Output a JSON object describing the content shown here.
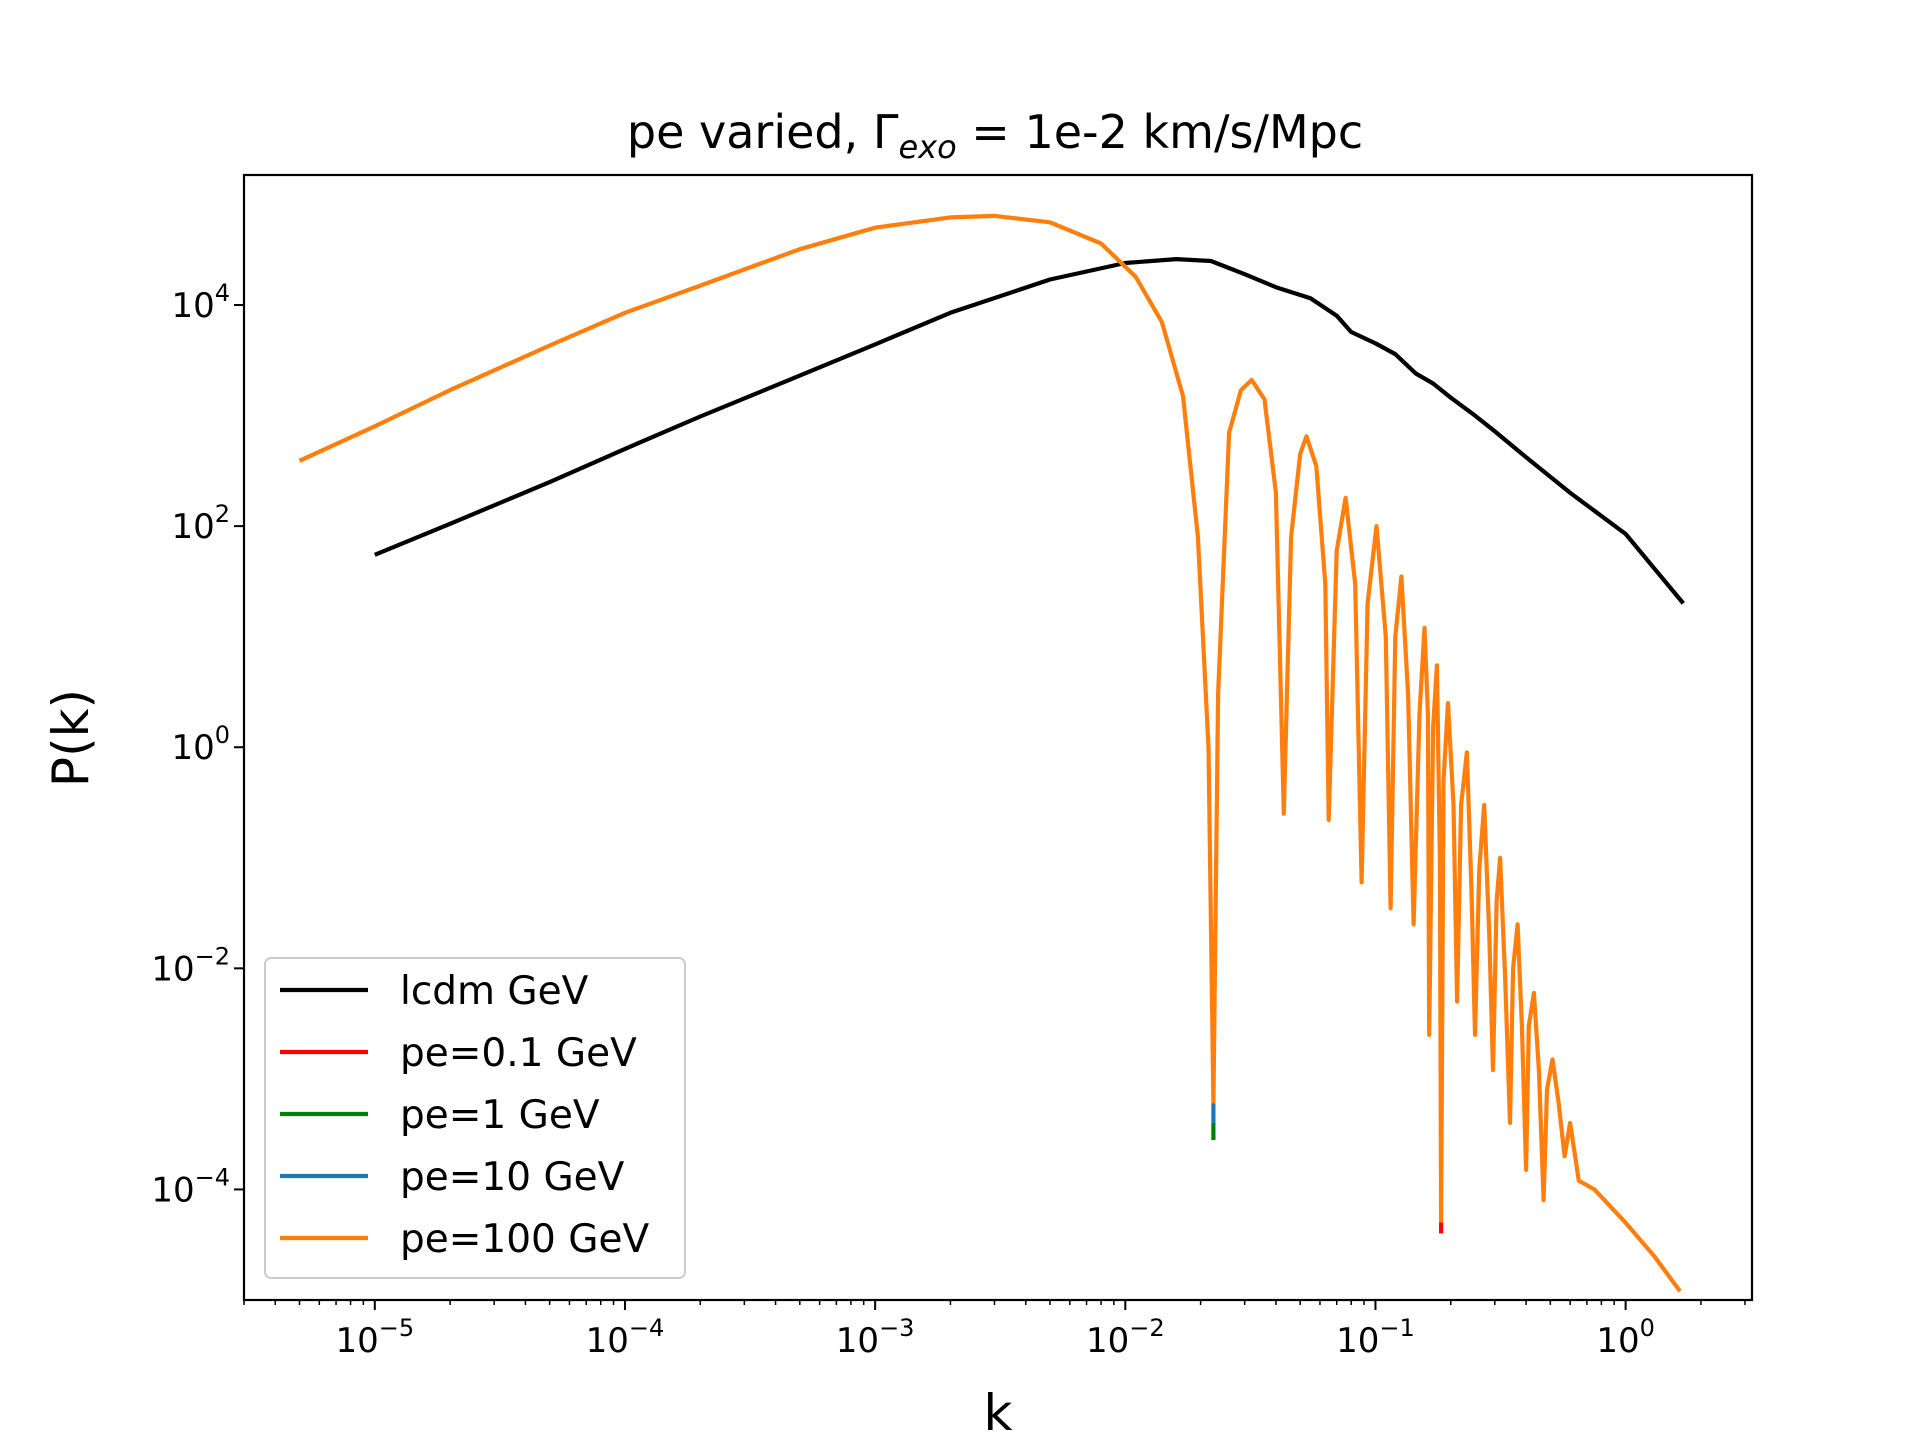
{
  "chart_data": {
    "type": "line",
    "title": {
      "prefix": "pe varied, Γ",
      "subscript": "exo",
      "suffix": " = 1e-2 km/s/Mpc"
    },
    "xlabel": "k",
    "ylabel": "P(k)",
    "xscale": "log",
    "yscale": "log",
    "xlim": [
      3e-06,
      3.2
    ],
    "ylim": [
      1e-05,
      150000.0
    ],
    "grid": false,
    "legend_position": "lower-left",
    "x_ticks": [
      {
        "value": 1e-05,
        "base": "10",
        "exp": "−5"
      },
      {
        "value": 0.0001,
        "base": "10",
        "exp": "−4"
      },
      {
        "value": 0.001,
        "base": "10",
        "exp": "−3"
      },
      {
        "value": 0.01,
        "base": "10",
        "exp": "−2"
      },
      {
        "value": 0.1,
        "base": "10",
        "exp": "−1"
      },
      {
        "value": 1,
        "base": "10",
        "exp": "0"
      }
    ],
    "y_ticks": [
      {
        "value": 10000.0,
        "base": "10",
        "exp": "4"
      },
      {
        "value": 100.0,
        "base": "10",
        "exp": "2"
      },
      {
        "value": 1,
        "base": "10",
        "exp": "0"
      },
      {
        "value": 0.01,
        "base": "10",
        "exp": "−2"
      },
      {
        "value": 0.0001,
        "base": "10",
        "exp": "−4"
      }
    ],
    "series": [
      {
        "name": "lcdm GeV",
        "color": "#000000",
        "points": [
          [
            1e-05,
            55
          ],
          [
            2e-05,
            105
          ],
          [
            5e-05,
            250
          ],
          [
            0.0001,
            500
          ],
          [
            0.0002,
            980
          ],
          [
            0.0005,
            2300
          ],
          [
            0.001,
            4400
          ],
          [
            0.002,
            8500
          ],
          [
            0.005,
            17000
          ],
          [
            0.01,
            24000
          ],
          [
            0.016,
            26000
          ],
          [
            0.022,
            25000
          ],
          [
            0.03,
            19000
          ],
          [
            0.04,
            14500
          ],
          [
            0.055,
            11500
          ],
          [
            0.07,
            8000
          ],
          [
            0.08,
            5700
          ],
          [
            0.1,
            4500
          ],
          [
            0.12,
            3600
          ],
          [
            0.145,
            2400
          ],
          [
            0.17,
            1950
          ],
          [
            0.2,
            1450
          ],
          [
            0.25,
            1000
          ],
          [
            0.3,
            720
          ],
          [
            0.4,
            420
          ],
          [
            0.6,
            200
          ],
          [
            1,
            85
          ],
          [
            1.7,
            20
          ]
        ]
      },
      {
        "name": "pe=0.1 GeV",
        "color": "#ff0000",
        "points": []
      },
      {
        "name": "pe=1 GeV",
        "color": "#008000",
        "points": []
      },
      {
        "name": "pe=10 GeV",
        "color": "#1f77b4",
        "points": []
      },
      {
        "name": "pe=100 GeV",
        "color": "#ff7f0e",
        "points": [
          [
            5e-06,
            390
          ],
          [
            1e-05,
            800
          ],
          [
            2e-05,
            1700
          ],
          [
            5e-05,
            4300
          ],
          [
            0.0001,
            8500
          ],
          [
            0.0002,
            15000
          ],
          [
            0.0005,
            32000
          ],
          [
            0.001,
            50000
          ],
          [
            0.002,
            62000
          ],
          [
            0.003,
            64000
          ],
          [
            0.005,
            56000
          ],
          [
            0.008,
            36000
          ],
          [
            0.011,
            18000
          ],
          [
            0.014,
            7000
          ],
          [
            0.017,
            1500
          ],
          [
            0.0195,
            80
          ],
          [
            0.0215,
            1
          ],
          [
            0.0225,
            0.0006
          ],
          [
            0.0235,
            3
          ],
          [
            0.026,
            700
          ],
          [
            0.029,
            1700
          ],
          [
            0.032,
            2100
          ],
          [
            0.036,
            1400
          ],
          [
            0.04,
            200
          ],
          [
            0.043,
            0.25
          ],
          [
            0.046,
            80
          ],
          [
            0.05,
            450
          ],
          [
            0.053,
            650
          ],
          [
            0.058,
            350
          ],
          [
            0.063,
            30
          ],
          [
            0.065,
            0.22
          ],
          [
            0.07,
            60
          ],
          [
            0.076,
            180
          ],
          [
            0.083,
            30
          ],
          [
            0.088,
            0.06
          ],
          [
            0.093,
            20
          ],
          [
            0.101,
            100
          ],
          [
            0.11,
            10
          ],
          [
            0.115,
            0.035
          ],
          [
            0.12,
            10
          ],
          [
            0.127,
            35
          ],
          [
            0.135,
            3
          ],
          [
            0.142,
            0.025
          ],
          [
            0.15,
            2
          ],
          [
            0.157,
            12
          ],
          [
            0.162,
            2
          ],
          [
            0.164,
            0.0025
          ],
          [
            0.17,
            1.5
          ],
          [
            0.176,
            5.5
          ],
          [
            0.181,
            0.1
          ],
          [
            0.183,
            5e-05
          ],
          [
            0.187,
            0.5
          ],
          [
            0.195,
            2.5
          ],
          [
            0.205,
            0.3
          ],
          [
            0.212,
            0.005
          ],
          [
            0.22,
            0.3
          ],
          [
            0.232,
            0.9
          ],
          [
            0.242,
            0.05
          ],
          [
            0.25,
            0.0025
          ],
          [
            0.26,
            0.08
          ],
          [
            0.272,
            0.3
          ],
          [
            0.285,
            0.02
          ],
          [
            0.295,
            0.0012
          ],
          [
            0.305,
            0.04
          ],
          [
            0.315,
            0.1
          ],
          [
            0.33,
            0.008
          ],
          [
            0.345,
            0.0004
          ],
          [
            0.355,
            0.01
          ],
          [
            0.37,
            0.025
          ],
          [
            0.385,
            0.003
          ],
          [
            0.4,
            0.00015
          ],
          [
            0.41,
            0.003
          ],
          [
            0.43,
            0.006
          ],
          [
            0.45,
            0.0012
          ],
          [
            0.47,
            8e-05
          ],
          [
            0.485,
            0.0008
          ],
          [
            0.51,
            0.0015
          ],
          [
            0.54,
            0.0006
          ],
          [
            0.57,
            0.0002
          ],
          [
            0.6,
            0.0004
          ],
          [
            0.65,
            0.00012
          ],
          [
            0.75,
            0.0001
          ],
          [
            1,
            5e-05
          ],
          [
            1.3,
            2.5e-05
          ],
          [
            1.65,
            1.2e-05
          ]
        ]
      }
    ],
    "dip_marks": [
      {
        "series_name": "pe=10 GeV",
        "x": 0.0225,
        "y_top": 0.0006,
        "y_bottom": 0.0004
      },
      {
        "series_name": "pe=1 GeV",
        "x": 0.0225,
        "y_top": 0.0004,
        "y_bottom": 0.00028
      },
      {
        "series_name": "pe=0.1 GeV",
        "x": 0.183,
        "y_top": 5e-05,
        "y_bottom": 4e-05
      }
    ]
  }
}
